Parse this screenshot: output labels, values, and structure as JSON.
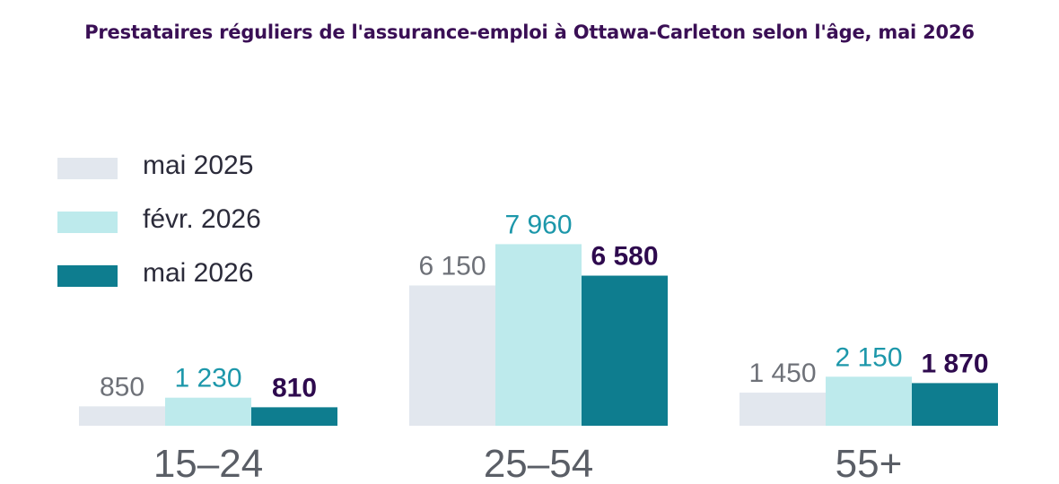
{
  "colors": {
    "title": "#3a0f55",
    "series": [
      "#e2e7ee",
      "#bdeaec",
      "#0e7d8f"
    ],
    "value_labels": [
      "#6e7178",
      "#1c97aa",
      "#2e0a4e"
    ],
    "category_labels": "#5a5e66"
  },
  "chart_data": {
    "type": "bar",
    "title": "Prestataires réguliers de l'assurance-emploi à Ottawa-Carleton selon l'âge, mai 2026",
    "xlabel": "",
    "ylabel": "",
    "categories": [
      "15–24",
      "25–54",
      "55+"
    ],
    "series": [
      {
        "name": "mai 2025",
        "values": [
          850,
          6150,
          1450
        ],
        "labels": [
          "850",
          "6 150",
          "1 450"
        ]
      },
      {
        "name": "févr. 2026",
        "values": [
          1230,
          7960,
          2150
        ],
        "labels": [
          "1 230",
          "7 960",
          "2 150"
        ]
      },
      {
        "name": "mai 2026",
        "values": [
          810,
          6580,
          1870
        ],
        "labels": [
          "810",
          "6 580",
          "1 870"
        ]
      }
    ],
    "ylim": [
      0,
      8000
    ],
    "grid": false,
    "legend": "top-left"
  }
}
